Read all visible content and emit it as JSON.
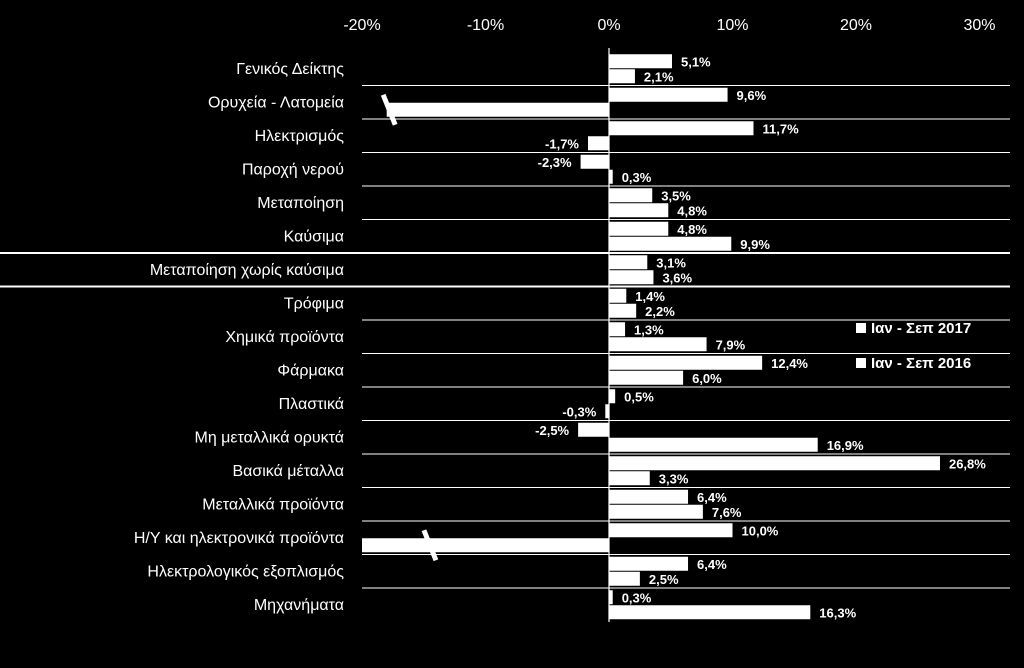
{
  "chart_data": {
    "type": "bar",
    "orientation": "horizontal",
    "title": "",
    "xlabel": "",
    "ylabel": "",
    "xlim": [
      -20,
      30
    ],
    "xticks": [
      "-20%",
      "-10%",
      "0%",
      "10%",
      "20%",
      "30%"
    ],
    "xtick_values": [
      -20,
      -10,
      0,
      10,
      20,
      30
    ],
    "grid": "horizontal separators between categories",
    "legend_position": "right",
    "colors": {
      "background": "#000000",
      "bar_fill": "#ffffff",
      "text": "#ffffff",
      "lines": "#ffffff"
    },
    "categories": [
      "Γενικός Δείκτης",
      "Ορυχεία - Λατομεία",
      "Ηλεκτρισμός",
      "Παροχή νερού",
      "Μεταποίηση",
      "Καύσιμα",
      "Μεταποίηση χωρίς καύσιμα",
      "Τρόφιμα",
      "Χημικά προϊόντα",
      "Φάρμακα",
      "Πλαστικά",
      "Μη μεταλλικά ορυκτά",
      "Βασικά μέταλλα",
      "Μεταλλικά προϊόντα",
      "Η/Υ και ηλεκτρονικά προϊόντα",
      "Ηλεκτρολογικός εξοπλισμός",
      "Μηχανήματα"
    ],
    "highlighted_category": "Μεταποίηση χωρίς καύσιμα",
    "series": [
      {
        "name": "Ιαν - Σεπ 2017",
        "values": [
          5.1,
          9.6,
          11.7,
          -2.3,
          3.5,
          4.8,
          3.1,
          1.4,
          1.3,
          12.4,
          0.5,
          -2.5,
          26.8,
          6.4,
          10.0,
          6.4,
          0.3
        ],
        "labels": [
          "5,1%",
          "9,6%",
          "11,7%",
          "-2,3%",
          "3,5%",
          "4,8%",
          "3,1%",
          "1,4%",
          "1,3%",
          "12,4%",
          "0,5%",
          "-2,5%",
          "26,8%",
          "6,4%",
          "10,0%",
          "6,4%",
          "0,3%"
        ]
      },
      {
        "name": "Ιαν - Σεπ 2016",
        "values": [
          2.1,
          -18.0,
          -1.7,
          0.3,
          4.8,
          9.9,
          3.6,
          2.2,
          7.9,
          6.0,
          -0.3,
          16.9,
          3.3,
          7.6,
          -20.0,
          2.5,
          16.3
        ],
        "labels": [
          "2,1%",
          "",
          "-1,7%",
          "0,3%",
          "4,8%",
          "9,9%",
          "3,6%",
          "2,2%",
          "7,9%",
          "6,0%",
          "-0,3%",
          "16,9%",
          "3,3%",
          "7,6%",
          "",
          "2,5%",
          "16,3%"
        ],
        "truncated": [
          false,
          true,
          false,
          false,
          false,
          false,
          false,
          false,
          false,
          false,
          false,
          false,
          false,
          false,
          true,
          false,
          false
        ]
      }
    ]
  }
}
